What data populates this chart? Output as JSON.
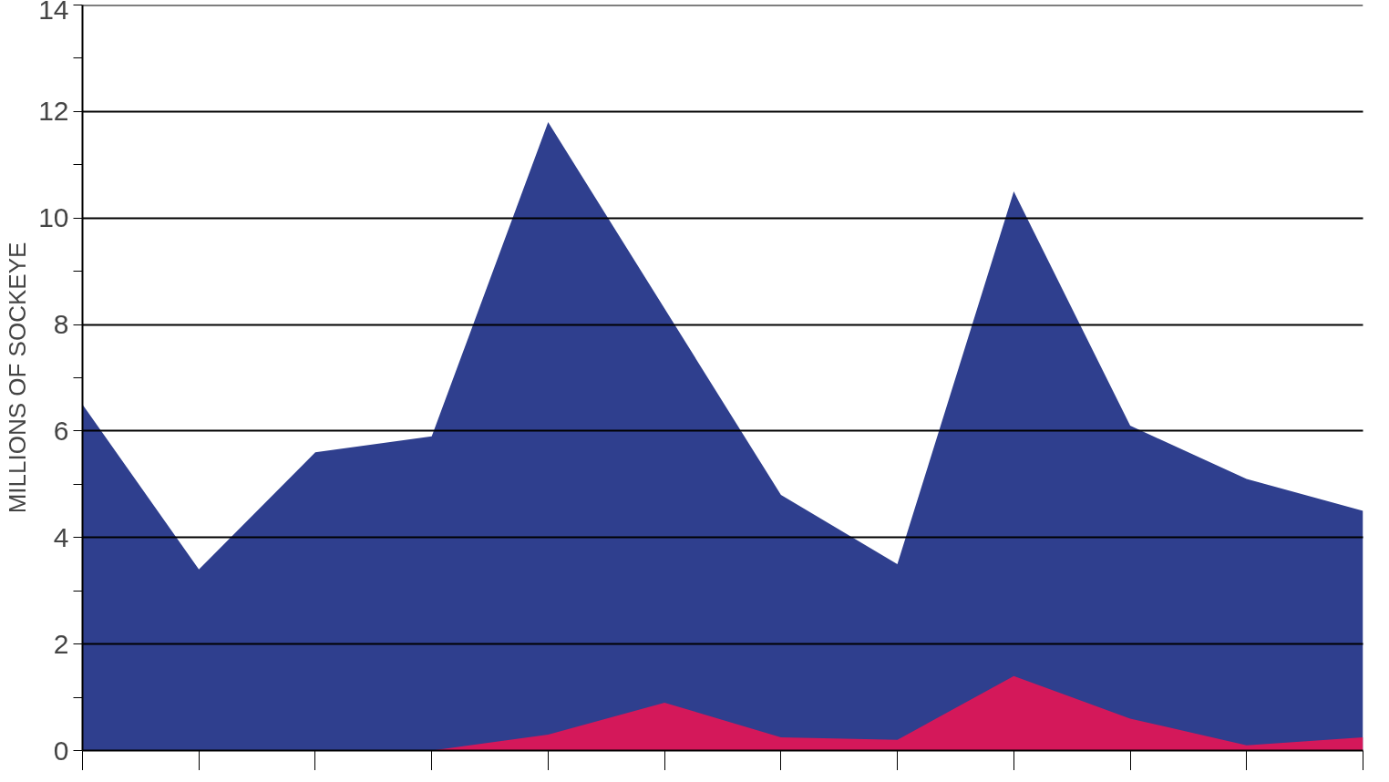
{
  "chart_data": {
    "type": "area",
    "ylabel": "MILLIONS OF SOCKEYE",
    "categories": [
      null,
      null,
      null,
      null,
      null,
      null,
      null,
      null,
      null,
      null,
      null,
      null
    ],
    "series": [
      {
        "color": "#2f3f8e",
        "values": [
          6.5,
          3.4,
          5.6,
          5.9,
          11.8,
          8.3,
          4.8,
          3.5,
          10.5,
          6.1,
          5.1,
          4.5
        ]
      },
      {
        "color": "#d4185a",
        "values": [
          0,
          0,
          0,
          0,
          0.3,
          0.9,
          0.25,
          0.2,
          1.4,
          0.6,
          0.1,
          0.25
        ]
      }
    ],
    "ylim": [
      0,
      14
    ],
    "yticks": [
      0,
      {
        "value": 1,
        "label": null
      },
      2,
      {
        "value": 3,
        "label": null
      },
      4,
      {
        "value": 5,
        "label": null
      },
      6,
      {
        "value": 7,
        "label": null
      },
      8,
      {
        "value": 9,
        "label": null
      },
      10,
      {
        "value": 11,
        "label": null
      },
      12,
      {
        "value": 13,
        "label": null
      },
      14
    ],
    "grid": "y"
  }
}
